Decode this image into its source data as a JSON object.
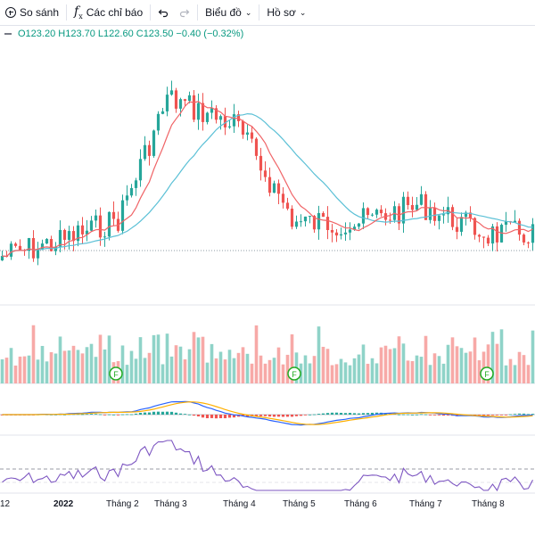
{
  "toolbar": {
    "compare_label": "So sánh",
    "indicators_label": "Các chỉ báo",
    "chart_label": "Biểu đồ",
    "profile_label": "Hồ sơ"
  },
  "legend": {
    "open": "O123.20",
    "high": "H123.70",
    "low": "L122.60",
    "close": "C123.50",
    "change": "−0.40 (−0.32%)"
  },
  "colors": {
    "up": "#26a69a",
    "down": "#ef5350",
    "up_volume": "#8fd3c8",
    "down_volume": "#f7a9a7",
    "ma_fast": "#f06467",
    "ma_slow": "#5bc0d6",
    "macd": "#2962ff",
    "signal": "#ffb000",
    "rsi": "#7e57c2"
  },
  "events": [
    "F",
    "F",
    "F"
  ],
  "chart_data": {
    "type": "candlestick",
    "x_ticks": [
      "12",
      "2022",
      "Tháng 2",
      "Tháng 3",
      "Tháng 4",
      "Tháng 5",
      "Tháng 6",
      "Tháng 7",
      "Tháng 8"
    ],
    "price_trend": [
      [
        "12",
        288
      ],
      [
        "2022",
        270
      ],
      [
        "Tháng 2",
        245
      ],
      [
        "Tháng 3",
        110
      ],
      [
        "Tháng 4",
        140
      ],
      [
        "Tháng 5",
        250
      ],
      [
        "Tháng 6",
        250
      ],
      [
        "Tháng 7",
        230
      ],
      [
        "Tháng 8",
        262
      ]
    ],
    "panes": [
      "price",
      "volume",
      "macd",
      "rsi"
    ]
  }
}
